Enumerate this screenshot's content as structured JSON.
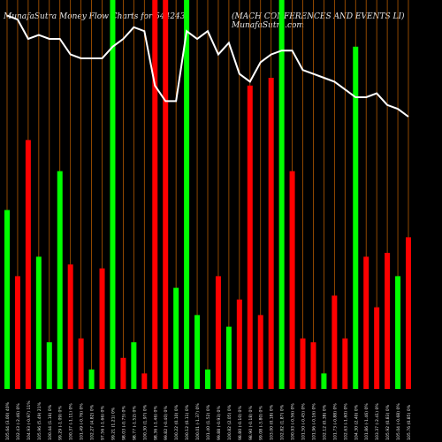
{
  "header": {
    "left": "MunafaSutra  Money Flow  Charts for 544243",
    "right": "(MACH CONFERENCES AND EVENTS LI) MunafaSutra.com"
  },
  "chart_data": {
    "type": "bar",
    "ylim": [
      0,
      100
    ],
    "bars": [
      {
        "label": "105.64 (3.00) 40%",
        "value": 46,
        "color": "green"
      },
      {
        "label": "102.43 (-2.46) 0%",
        "value": 29,
        "color": "red"
      },
      {
        "label": "104.93 (-0.97) 11%",
        "value": 64,
        "color": "red"
      },
      {
        "label": "105.96 (5.49) 21%",
        "value": 34,
        "color": "green"
      },
      {
        "label": "100.44 (1.16) 0%",
        "value": 12,
        "color": "green"
      },
      {
        "label": "99.29 (-1.09) 0%",
        "value": 56,
        "color": "green"
      },
      {
        "label": "100.37 (-1.11) 0%",
        "value": 32,
        "color": "red"
      },
      {
        "label": "101.49 (-0.76) 0%",
        "value": 13,
        "color": "red"
      },
      {
        "label": "102.27 (4.82) 0%",
        "value": 5,
        "color": "green"
      },
      {
        "label": "97.56 (-1.66) 0%",
        "value": 31,
        "color": "red"
      },
      {
        "label": "99.21 (1.21) 0%",
        "value": 100,
        "color": "green"
      },
      {
        "label": "98.03 (-0.75) 0%",
        "value": 8,
        "color": "red"
      },
      {
        "label": "98.77 (-1.52) 0%",
        "value": 12,
        "color": "green"
      },
      {
        "label": "100.30 (1.97) 0%",
        "value": 4,
        "color": "red"
      },
      {
        "label": "98.36 (-1.46) 0%",
        "value": 100,
        "color": "red"
      },
      {
        "label": "99.82 (-0.40) 0%",
        "value": 100,
        "color": "red"
      },
      {
        "label": "100.22 (0.10) 0%",
        "value": 26,
        "color": "green"
      },
      {
        "label": "100.12 (0.11) 0%",
        "value": 100,
        "color": "green"
      },
      {
        "label": "100.01 (-1.37) 0%",
        "value": 19,
        "color": "green"
      },
      {
        "label": "101.40 (1.52) 0%",
        "value": 5,
        "color": "green"
      },
      {
        "label": "99.88 (-0.93) 0%",
        "value": 29,
        "color": "red"
      },
      {
        "label": "100.82 (2.05) 0%",
        "value": 16,
        "color": "green"
      },
      {
        "label": "98.80 (-0.10) 0%",
        "value": 23,
        "color": "red"
      },
      {
        "label": "98.90 (-0.18) 0%",
        "value": 78,
        "color": "red"
      },
      {
        "label": "99.08 (-3.80) 0%",
        "value": 19,
        "color": "red"
      },
      {
        "label": "103.00 (0.18) 0%",
        "value": 80,
        "color": "red"
      },
      {
        "label": "102.82 (1.87) 0%",
        "value": 100,
        "color": "green"
      },
      {
        "label": "100.93 (-0.56) 0%",
        "value": 56,
        "color": "red"
      },
      {
        "label": "101.50 (-0.45) 0%",
        "value": 13,
        "color": "red"
      },
      {
        "label": "101.96 (-0.16) 0%",
        "value": 12,
        "color": "red"
      },
      {
        "label": "102.12 (0.38) 0%",
        "value": 4,
        "color": "green"
      },
      {
        "label": "101.73 (-0.88) 0%",
        "value": 24,
        "color": "red"
      },
      {
        "label": "102.63 (-1.60) 0%",
        "value": 13,
        "color": "red"
      },
      {
        "label": "104.30 (2.40) 0%",
        "value": 88,
        "color": "green"
      },
      {
        "label": "101.86 (-1.46) 0%",
        "value": 34,
        "color": "red"
      },
      {
        "label": "103.37 (-2.41) 0%",
        "value": 21,
        "color": "red"
      },
      {
        "label": "105.92 (0.83) 0%",
        "value": 35,
        "color": "red"
      },
      {
        "label": "105.04 (-0.68) 0%",
        "value": 29,
        "color": "green"
      },
      {
        "label": "105.76 (0.85) 0%",
        "value": 39,
        "color": "red"
      }
    ],
    "price_line": [
      96,
      95,
      90,
      91,
      90,
      90,
      86,
      85,
      85,
      85,
      88,
      90,
      93,
      92,
      78,
      74,
      74,
      92,
      90,
      92,
      86,
      89,
      81,
      79,
      84,
      86,
      87,
      87,
      82,
      81,
      80,
      79,
      77,
      75,
      75,
      76,
      73,
      72,
      70
    ]
  },
  "colors": {
    "background": "#000000",
    "red": "#ff0000",
    "green": "#00ff00",
    "line": "#ffffff",
    "separator": "#b35900",
    "label": "#e6e6e6"
  }
}
